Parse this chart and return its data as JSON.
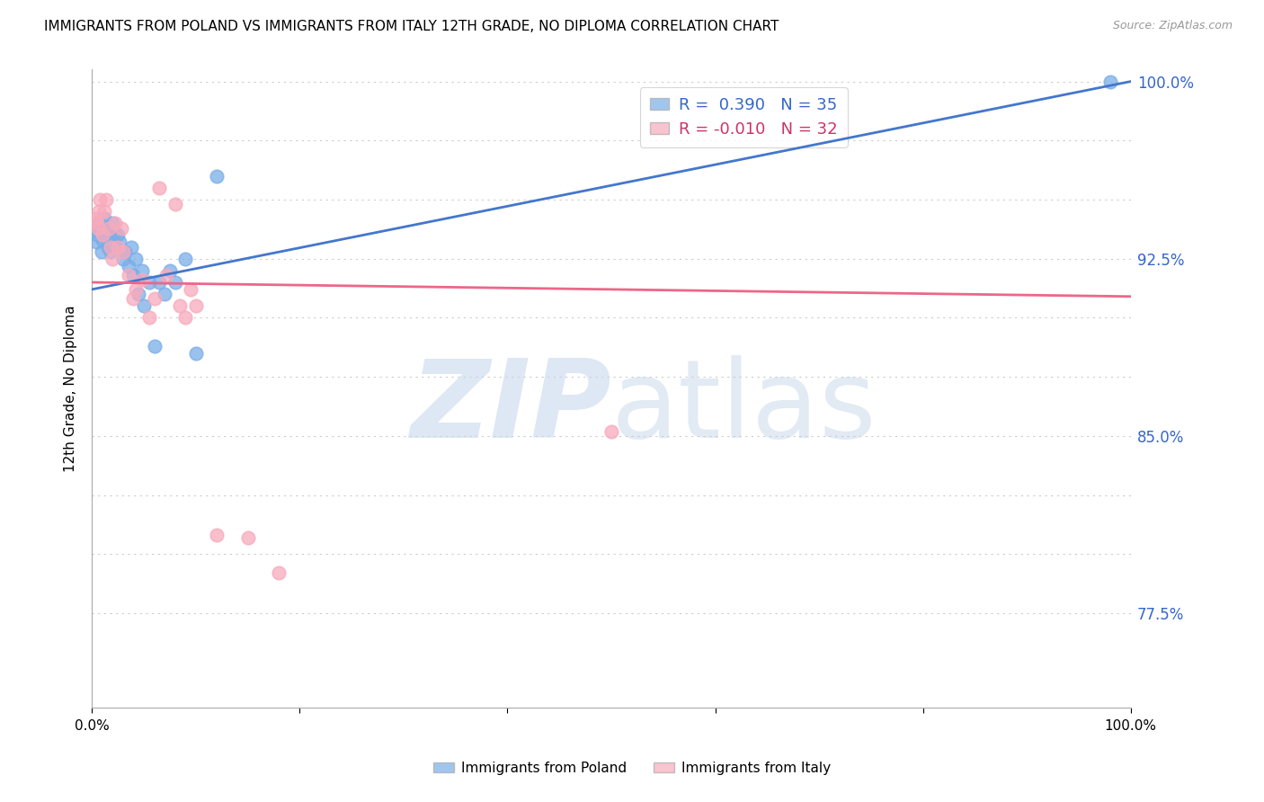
{
  "title": "IMMIGRANTS FROM POLAND VS IMMIGRANTS FROM ITALY 12TH GRADE, NO DIPLOMA CORRELATION CHART",
  "source": "Source: ZipAtlas.com",
  "ylabel": "12th Grade, No Diploma",
  "xmin": 0.0,
  "xmax": 1.0,
  "ymin": 0.735,
  "ymax": 1.005,
  "yticks_right": [
    0.775,
    0.85,
    0.925,
    1.0
  ],
  "ytick_labels_right": [
    "77.5%",
    "85.0%",
    "92.5%",
    "100.0%"
  ],
  "yticks_grid": [
    0.775,
    0.8,
    0.825,
    0.85,
    0.875,
    0.9,
    0.925,
    0.95,
    0.975,
    1.0
  ],
  "grid_color": "#cccccc",
  "background_color": "#ffffff",
  "poland_color": "#7aaee8",
  "italy_color": "#f8aabc",
  "poland_line_color": "#4477cc",
  "italy_line_color": "#ee6688",
  "poland_R": 0.39,
  "poland_N": 35,
  "italy_R": -0.01,
  "italy_N": 32,
  "poland_trend_x": [
    0.0,
    1.0
  ],
  "poland_trend_y": [
    0.912,
    1.0
  ],
  "italy_trend_x": [
    0.0,
    1.0
  ],
  "italy_trend_y": [
    0.915,
    0.909
  ],
  "poland_points_x": [
    0.004,
    0.005,
    0.006,
    0.007,
    0.009,
    0.01,
    0.012,
    0.013,
    0.015,
    0.016,
    0.018,
    0.02,
    0.022,
    0.023,
    0.025,
    0.027,
    0.03,
    0.032,
    0.035,
    0.038,
    0.04,
    0.042,
    0.045,
    0.048,
    0.05,
    0.055,
    0.06,
    0.065,
    0.07,
    0.075,
    0.08,
    0.09,
    0.1,
    0.12,
    0.98
  ],
  "poland_points_y": [
    0.932,
    0.935,
    0.937,
    0.94,
    0.928,
    0.933,
    0.942,
    0.938,
    0.93,
    0.935,
    0.928,
    0.94,
    0.935,
    0.93,
    0.935,
    0.932,
    0.925,
    0.928,
    0.922,
    0.93,
    0.918,
    0.925,
    0.91,
    0.92,
    0.905,
    0.915,
    0.888,
    0.915,
    0.91,
    0.92,
    0.915,
    0.925,
    0.885,
    0.96,
    1.0
  ],
  "italy_points_x": [
    0.004,
    0.005,
    0.006,
    0.007,
    0.008,
    0.01,
    0.012,
    0.014,
    0.016,
    0.018,
    0.02,
    0.022,
    0.025,
    0.028,
    0.03,
    0.035,
    0.04,
    0.042,
    0.048,
    0.055,
    0.06,
    0.065,
    0.072,
    0.08,
    0.085,
    0.09,
    0.095,
    0.1,
    0.12,
    0.15,
    0.18,
    0.5
  ],
  "italy_points_y": [
    0.942,
    0.94,
    0.938,
    0.945,
    0.95,
    0.935,
    0.945,
    0.95,
    0.938,
    0.93,
    0.925,
    0.94,
    0.93,
    0.938,
    0.928,
    0.918,
    0.908,
    0.912,
    0.916,
    0.9,
    0.908,
    0.955,
    0.918,
    0.948,
    0.905,
    0.9,
    0.912,
    0.905,
    0.808,
    0.807,
    0.792,
    0.852
  ],
  "watermark_zip": "ZIP",
  "watermark_atlas": "atlas",
  "legend_poland": "Immigrants from Poland",
  "legend_italy": "Immigrants from Italy"
}
